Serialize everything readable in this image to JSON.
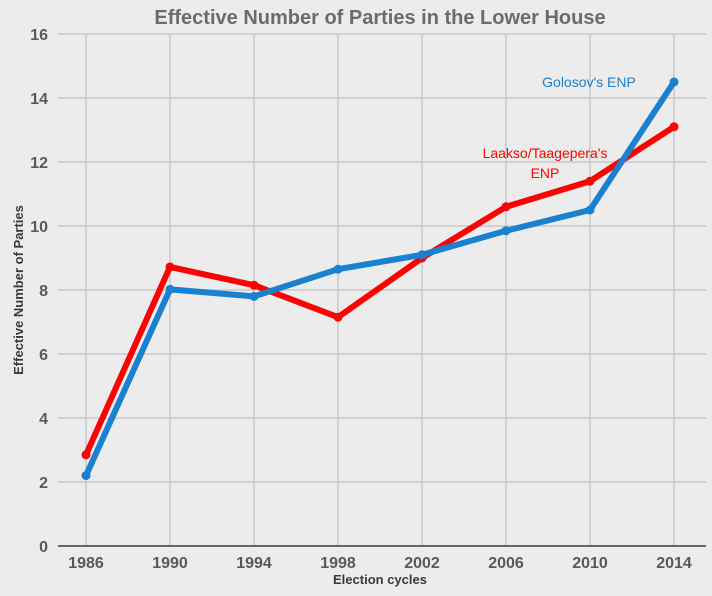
{
  "chart_data": {
    "type": "line",
    "title": "Effective Number of Parties in the Lower House",
    "xlabel": "Election cycles",
    "ylabel": "Effective Number of Parties",
    "categories": [
      "1986",
      "1990",
      "1994",
      "1998",
      "2002",
      "2006",
      "2010",
      "2014"
    ],
    "ylim": [
      0,
      16
    ],
    "yticks": [
      "0",
      "2",
      "4",
      "6",
      "8",
      "10",
      "12",
      "14",
      "16"
    ],
    "grid": true,
    "series": [
      {
        "name": "Laakso/Taagepera's ENP",
        "label_lines": [
          "Laakso/Taagepera's",
          "ENP"
        ],
        "color": "#ff0000",
        "values": [
          2.85,
          8.72,
          8.15,
          7.15,
          9.0,
          10.6,
          11.4,
          13.1
        ]
      },
      {
        "name": "Golosov's ENP",
        "label_lines": [
          "Golosov's ENP"
        ],
        "color": "#1a80d0",
        "values": [
          2.2,
          8.02,
          7.8,
          8.65,
          9.1,
          9.85,
          10.5,
          14.5
        ]
      }
    ]
  }
}
